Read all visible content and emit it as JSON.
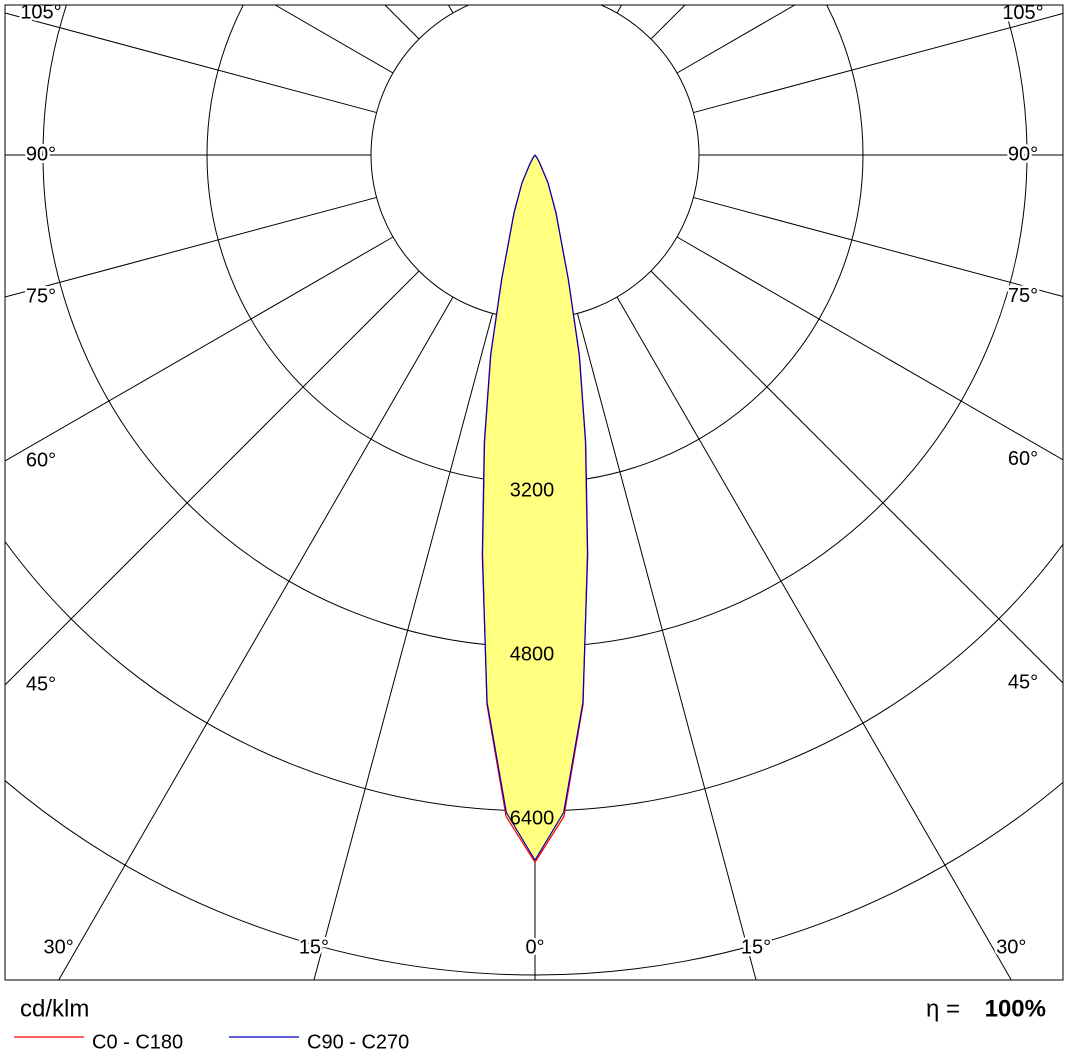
{
  "chart_data": {
    "type": "polar",
    "unit_label": "cd/klm",
    "efficiency": {
      "label": "η =",
      "value": 100,
      "value_label": "100%"
    },
    "rlim": [
      0,
      8000
    ],
    "rticks": [
      {
        "value": 1600,
        "label": null
      },
      3200,
      4800,
      6400,
      {
        "value": 8000,
        "label": null
      }
    ],
    "xticks": [
      {
        "value": 0,
        "label": "0°"
      },
      {
        "value": 15,
        "label": "15°"
      },
      {
        "value": 30,
        "label": "30°"
      },
      {
        "value": 45,
        "label": "45°"
      },
      {
        "value": 60,
        "label": "60°"
      },
      {
        "value": 75,
        "label": "75°"
      },
      {
        "value": 90,
        "label": "90°"
      },
      {
        "value": 105,
        "label": "105°"
      },
      {
        "value": 120,
        "label": null
      },
      {
        "value": 135,
        "label": null
      },
      {
        "value": 150,
        "label": null
      },
      {
        "value": 165,
        "label": null
      }
    ],
    "fill_color": "#ffff80",
    "x": [
      0,
      2.5,
      5,
      7.5,
      10,
      12.5,
      15,
      20,
      25,
      30,
      35,
      40,
      50,
      60,
      70,
      80,
      90
    ],
    "series": [
      {
        "name": "C0 - C180",
        "color": "#ff0000",
        "values": [
          6900,
          6460,
          5380,
          3920,
          2830,
          1990,
          1250,
          590,
          300,
          100,
          30,
          0,
          0,
          0,
          0,
          0,
          0
        ]
      },
      {
        "name": "C90 - C270",
        "color": "#0000c0",
        "values": [
          6880,
          6420,
          5360,
          3940,
          2850,
          2000,
          1260,
          600,
          300,
          100,
          30,
          0,
          0,
          0,
          0,
          0,
          0
        ]
      }
    ]
  }
}
